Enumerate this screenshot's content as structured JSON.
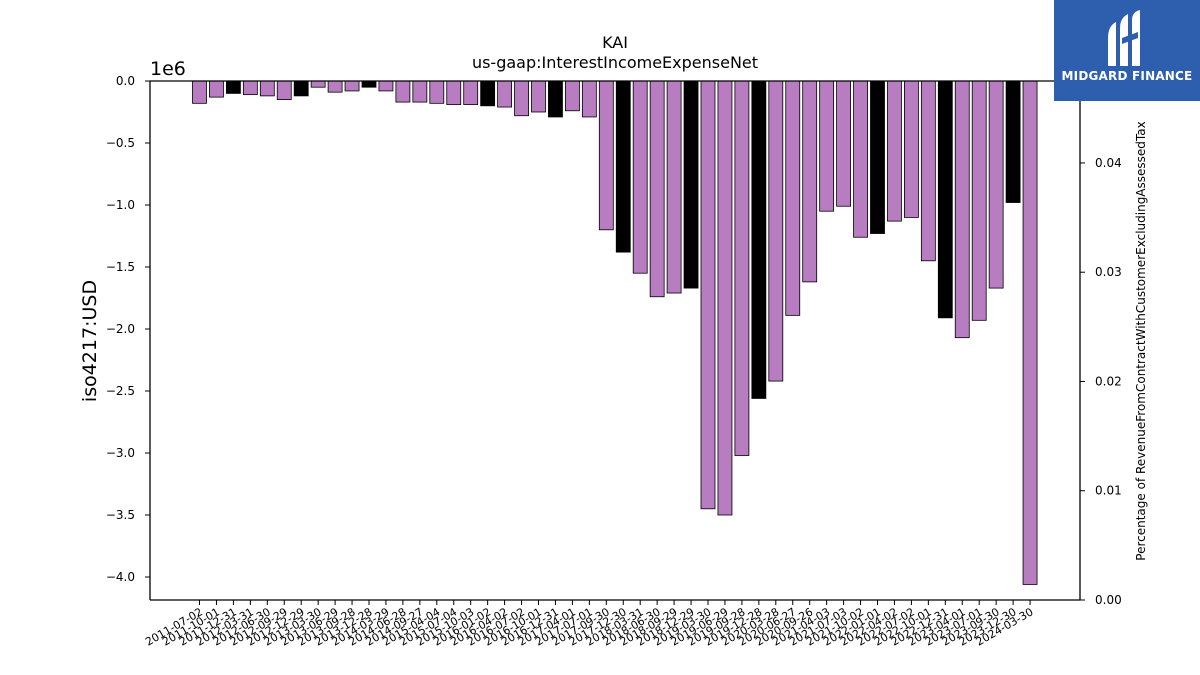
{
  "chart_data": {
    "type": "bar",
    "title": "KAI",
    "subtitle": "us-gaap:InterestIncomeExpenseNet",
    "ylabel": "iso4217:USD",
    "y_offset_label": "1e6",
    "y2label": "Percentage of RevenueFromContractWithCustomerExcludingAssessedTax",
    "ylim": [
      -4.2,
      0
    ],
    "y2lim": [
      0,
      0.0475
    ],
    "yticks": [
      "0.0",
      "−0.5",
      "−1.0",
      "−1.5",
      "−2.0",
      "−2.5",
      "−3.0",
      "−3.5",
      "−4.0"
    ],
    "yticks_values": [
      0,
      -0.5,
      -1.0,
      -1.5,
      -2.0,
      -2.5,
      -3.0,
      -3.5,
      -4.0
    ],
    "y2ticks": [
      "0.00",
      "0.01",
      "0.02",
      "0.03",
      "0.04"
    ],
    "y2ticks_values": [
      0,
      0.01,
      0.02,
      0.03,
      0.04
    ],
    "categories": [
      "2011-07-02",
      "2011-10-01",
      "2011-12-31",
      "2012-03-31",
      "2012-06-30",
      "2012-09-29",
      "2012-12-29",
      "2013-03-30",
      "2013-06-29",
      "2013-09-28",
      "2013-12-28",
      "2014-03-29",
      "2014-06-28",
      "2014-09-27",
      "2015-04-04",
      "2015-07-04",
      "2015-10-03",
      "2016-01-02",
      "2016-04-02",
      "2016-07-02",
      "2016-10-01",
      "2016-12-31",
      "2017-04-01",
      "2017-07-01",
      "2017-09-30",
      "2017-12-30",
      "2018-03-31",
      "2018-06-30",
      "2018-09-29",
      "2018-12-29",
      "2019-03-30",
      "2019-06-29",
      "2019-09-28",
      "2019-12-28",
      "2020-03-28",
      "2020-06-27",
      "2020-09-26",
      "2021-04-03",
      "2021-07-03",
      "2021-10-02",
      "2022-01-01",
      "2022-04-02",
      "2022-07-02",
      "2022-10-01",
      "2022-12-31",
      "2023-04-01",
      "2023-07-01",
      "2023-09-30",
      "2023-12-30",
      "2024-03-30"
    ],
    "series": [
      {
        "values": [
          -0.18,
          -0.13,
          -0.1,
          -0.11,
          -0.12,
          -0.15,
          -0.12,
          -0.05,
          -0.09,
          -0.08,
          -0.05,
          -0.08,
          -0.17,
          -0.17,
          -0.18,
          -0.19,
          -0.19,
          -0.2,
          -0.21,
          -0.28,
          -0.25,
          -0.29,
          -0.24,
          -0.29,
          -1.2,
          -1.38,
          -1.55,
          -1.74,
          -1.71,
          -1.67,
          -3.45,
          -3.5,
          -3.02,
          -2.56,
          -2.42,
          -1.89,
          -1.62,
          -1.05,
          -1.01,
          -1.26,
          -1.23,
          -1.13,
          -1.1,
          -1.45,
          -1.91,
          -2.07,
          -1.93,
          -1.67,
          -0.98,
          -4.06
        ],
        "colors": [
          "#b87dc0",
          "#b87dc0",
          "#000000",
          "#b87dc0",
          "#b87dc0",
          "#b87dc0",
          "#000000",
          "#b87dc0",
          "#b87dc0",
          "#b87dc0",
          "#000000",
          "#b87dc0",
          "#b87dc0",
          "#b87dc0",
          "#b87dc0",
          "#b87dc0",
          "#b87dc0",
          "#000000",
          "#b87dc0",
          "#b87dc0",
          "#b87dc0",
          "#000000",
          "#b87dc0",
          "#b87dc0",
          "#b87dc0",
          "#000000",
          "#b87dc0",
          "#b87dc0",
          "#b87dc0",
          "#000000",
          "#b87dc0",
          "#b87dc0",
          "#b87dc0",
          "#000000",
          "#b87dc0",
          "#b87dc0",
          "#b87dc0",
          "#b87dc0",
          "#b87dc0",
          "#b87dc0",
          "#000000",
          "#b87dc0",
          "#b87dc0",
          "#b87dc0",
          "#000000",
          "#b87dc0",
          "#b87dc0",
          "#b87dc0",
          "#000000",
          "#b87dc0"
        ]
      }
    ],
    "grid": false
  },
  "logo": {
    "text": "MIDGARD FINANCE",
    "background": "#2d5fae"
  }
}
